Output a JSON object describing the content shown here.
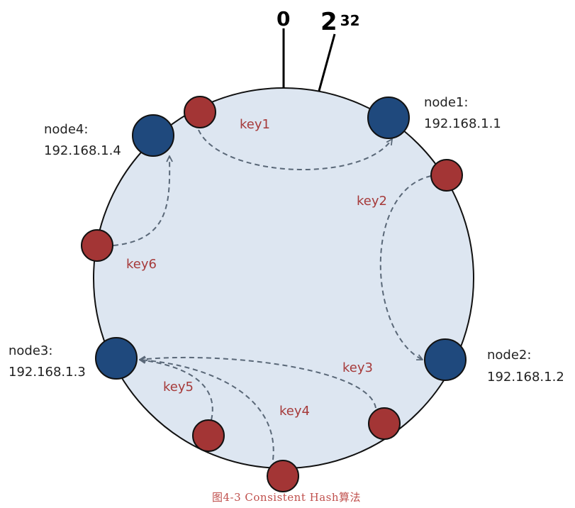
{
  "ring_markers": {
    "zero": "0",
    "pow_base": "2",
    "pow_exp": "32"
  },
  "nodes": [
    {
      "name": "node1:",
      "ip": "192.168.1.1"
    },
    {
      "name": "node2:",
      "ip": "192.168.1.2"
    },
    {
      "name": "node3:",
      "ip": "192.168.1.3"
    },
    {
      "name": "node4:",
      "ip": "192.168.1.4"
    }
  ],
  "keys": [
    "key1",
    "key2",
    "key3",
    "key4",
    "key5",
    "key6"
  ],
  "caption": "图4-3 Consistent Hash算法",
  "colors": {
    "ring_fill": "#dde6f1",
    "node_fill": "#1f497d",
    "key_fill": "#a33535",
    "arrow": "#5a6878",
    "caption": "#c0504d"
  }
}
